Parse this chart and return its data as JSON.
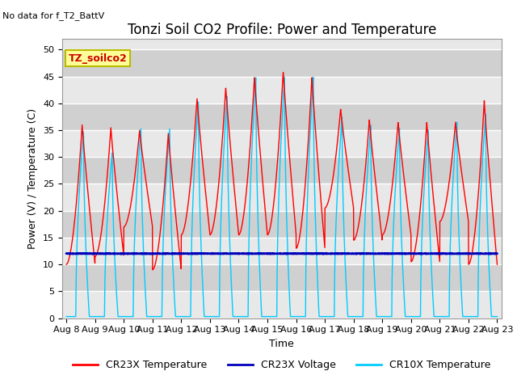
{
  "title": "Tonzi Soil CO2 Profile: Power and Temperature",
  "no_data_text": "No data for f_T2_BattV",
  "xlabel": "Time",
  "ylabel": "Power (V) / Temperature (C)",
  "ylim": [
    0,
    52
  ],
  "yticks": [
    0,
    5,
    10,
    15,
    20,
    25,
    30,
    35,
    40,
    45,
    50
  ],
  "n_days": 15,
  "xtick_labels": [
    "Aug 8",
    "Aug 9",
    "Aug 10",
    "Aug 11",
    "Aug 12",
    "Aug 13",
    "Aug 14",
    "Aug 15",
    "Aug 16",
    "Aug 17",
    "Aug 18",
    "Aug 19",
    "Aug 20",
    "Aug 21",
    "Aug 22",
    "Aug 23"
  ],
  "legend_labels": [
    "CR23X Temperature",
    "CR23X Voltage",
    "CR10X Temperature"
  ],
  "cr23x_color": "#ff0000",
  "volt_color": "#0000bb",
  "cr10x_color": "#00ccff",
  "bg_light": "#e8e8e8",
  "bg_dark": "#d0d0d0",
  "grid_color": "#ffffff",
  "inset_label": "TZ_soilco2",
  "inset_label_color": "#cc0000",
  "inset_bg": "#ffff99",
  "inset_border": "#bbbb00",
  "volt_level": 12.0,
  "cr23x_peaks": [
    36.0,
    35.5,
    35.0,
    34.5,
    41.0,
    43.0,
    45.0,
    46.0,
    45.0,
    39.0,
    37.0,
    36.5,
    36.5,
    36.5,
    40.5
  ],
  "cr23x_mins": [
    10.0,
    11.5,
    17.0,
    9.0,
    15.5,
    15.5,
    15.5,
    15.5,
    13.0,
    20.5,
    14.5,
    15.5,
    10.5,
    18.0,
    10.0
  ],
  "cr10x_peaks": [
    35.0,
    31.0,
    35.5,
    35.5,
    40.5,
    41.5,
    45.0,
    45.0,
    45.0,
    37.5,
    36.0,
    35.5,
    35.0,
    36.5,
    38.0
  ],
  "title_fontsize": 12,
  "axis_fontsize": 9,
  "tick_fontsize": 8
}
